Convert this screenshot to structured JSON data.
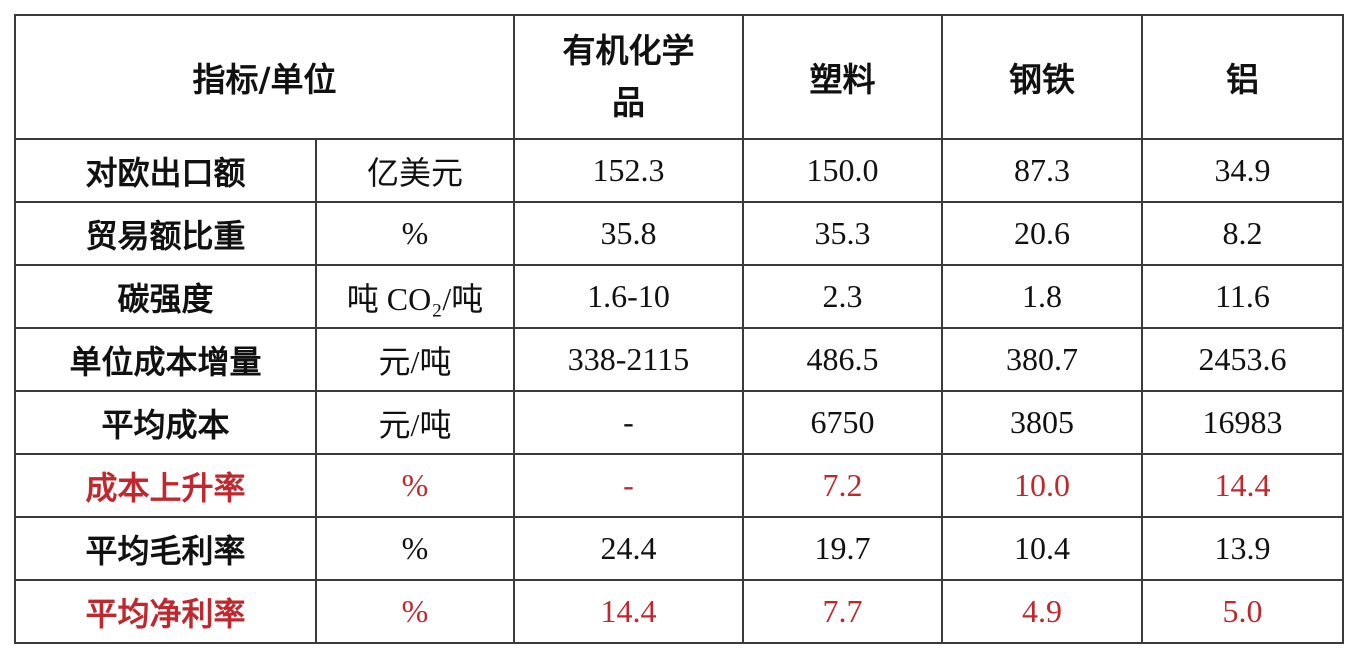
{
  "table": {
    "header": [
      "指标/单位",
      "有机化学品",
      "塑料",
      "钢铁",
      "铝"
    ],
    "rows": [
      {
        "cells": [
          "对欧出口额",
          "亿美元",
          "152.3",
          "150.0",
          "87.3",
          "34.9"
        ],
        "color": "#111111"
      },
      {
        "cells": [
          "贸易额比重",
          "%",
          "35.8",
          "35.3",
          "20.6",
          "8.2"
        ],
        "color": "#111111"
      },
      {
        "cells": [
          "碳强度",
          "吨 CO₂/吨",
          "1.6-10",
          "2.3",
          "1.8",
          "11.6"
        ],
        "color": "#111111"
      },
      {
        "cells": [
          "单位成本增量",
          "元/吨",
          "338-2115",
          "486.5",
          "380.7",
          "2453.6"
        ],
        "color": "#111111"
      },
      {
        "cells": [
          "平均成本",
          "元/吨",
          "-",
          "6750",
          "3805",
          "16983"
        ],
        "color": "#111111"
      },
      {
        "cells": [
          "成本上升率",
          "%",
          "-",
          "7.2",
          "10.0",
          "14.4"
        ],
        "color": "#c0282e"
      },
      {
        "cells": [
          "平均毛利率",
          "%",
          "24.4",
          "19.7",
          "10.4",
          "13.9"
        ],
        "color": "#111111"
      },
      {
        "cells": [
          "平均净利率",
          "%",
          "14.4",
          "7.7",
          "4.9",
          "5.0"
        ],
        "color": "#c0282e"
      }
    ]
  }
}
